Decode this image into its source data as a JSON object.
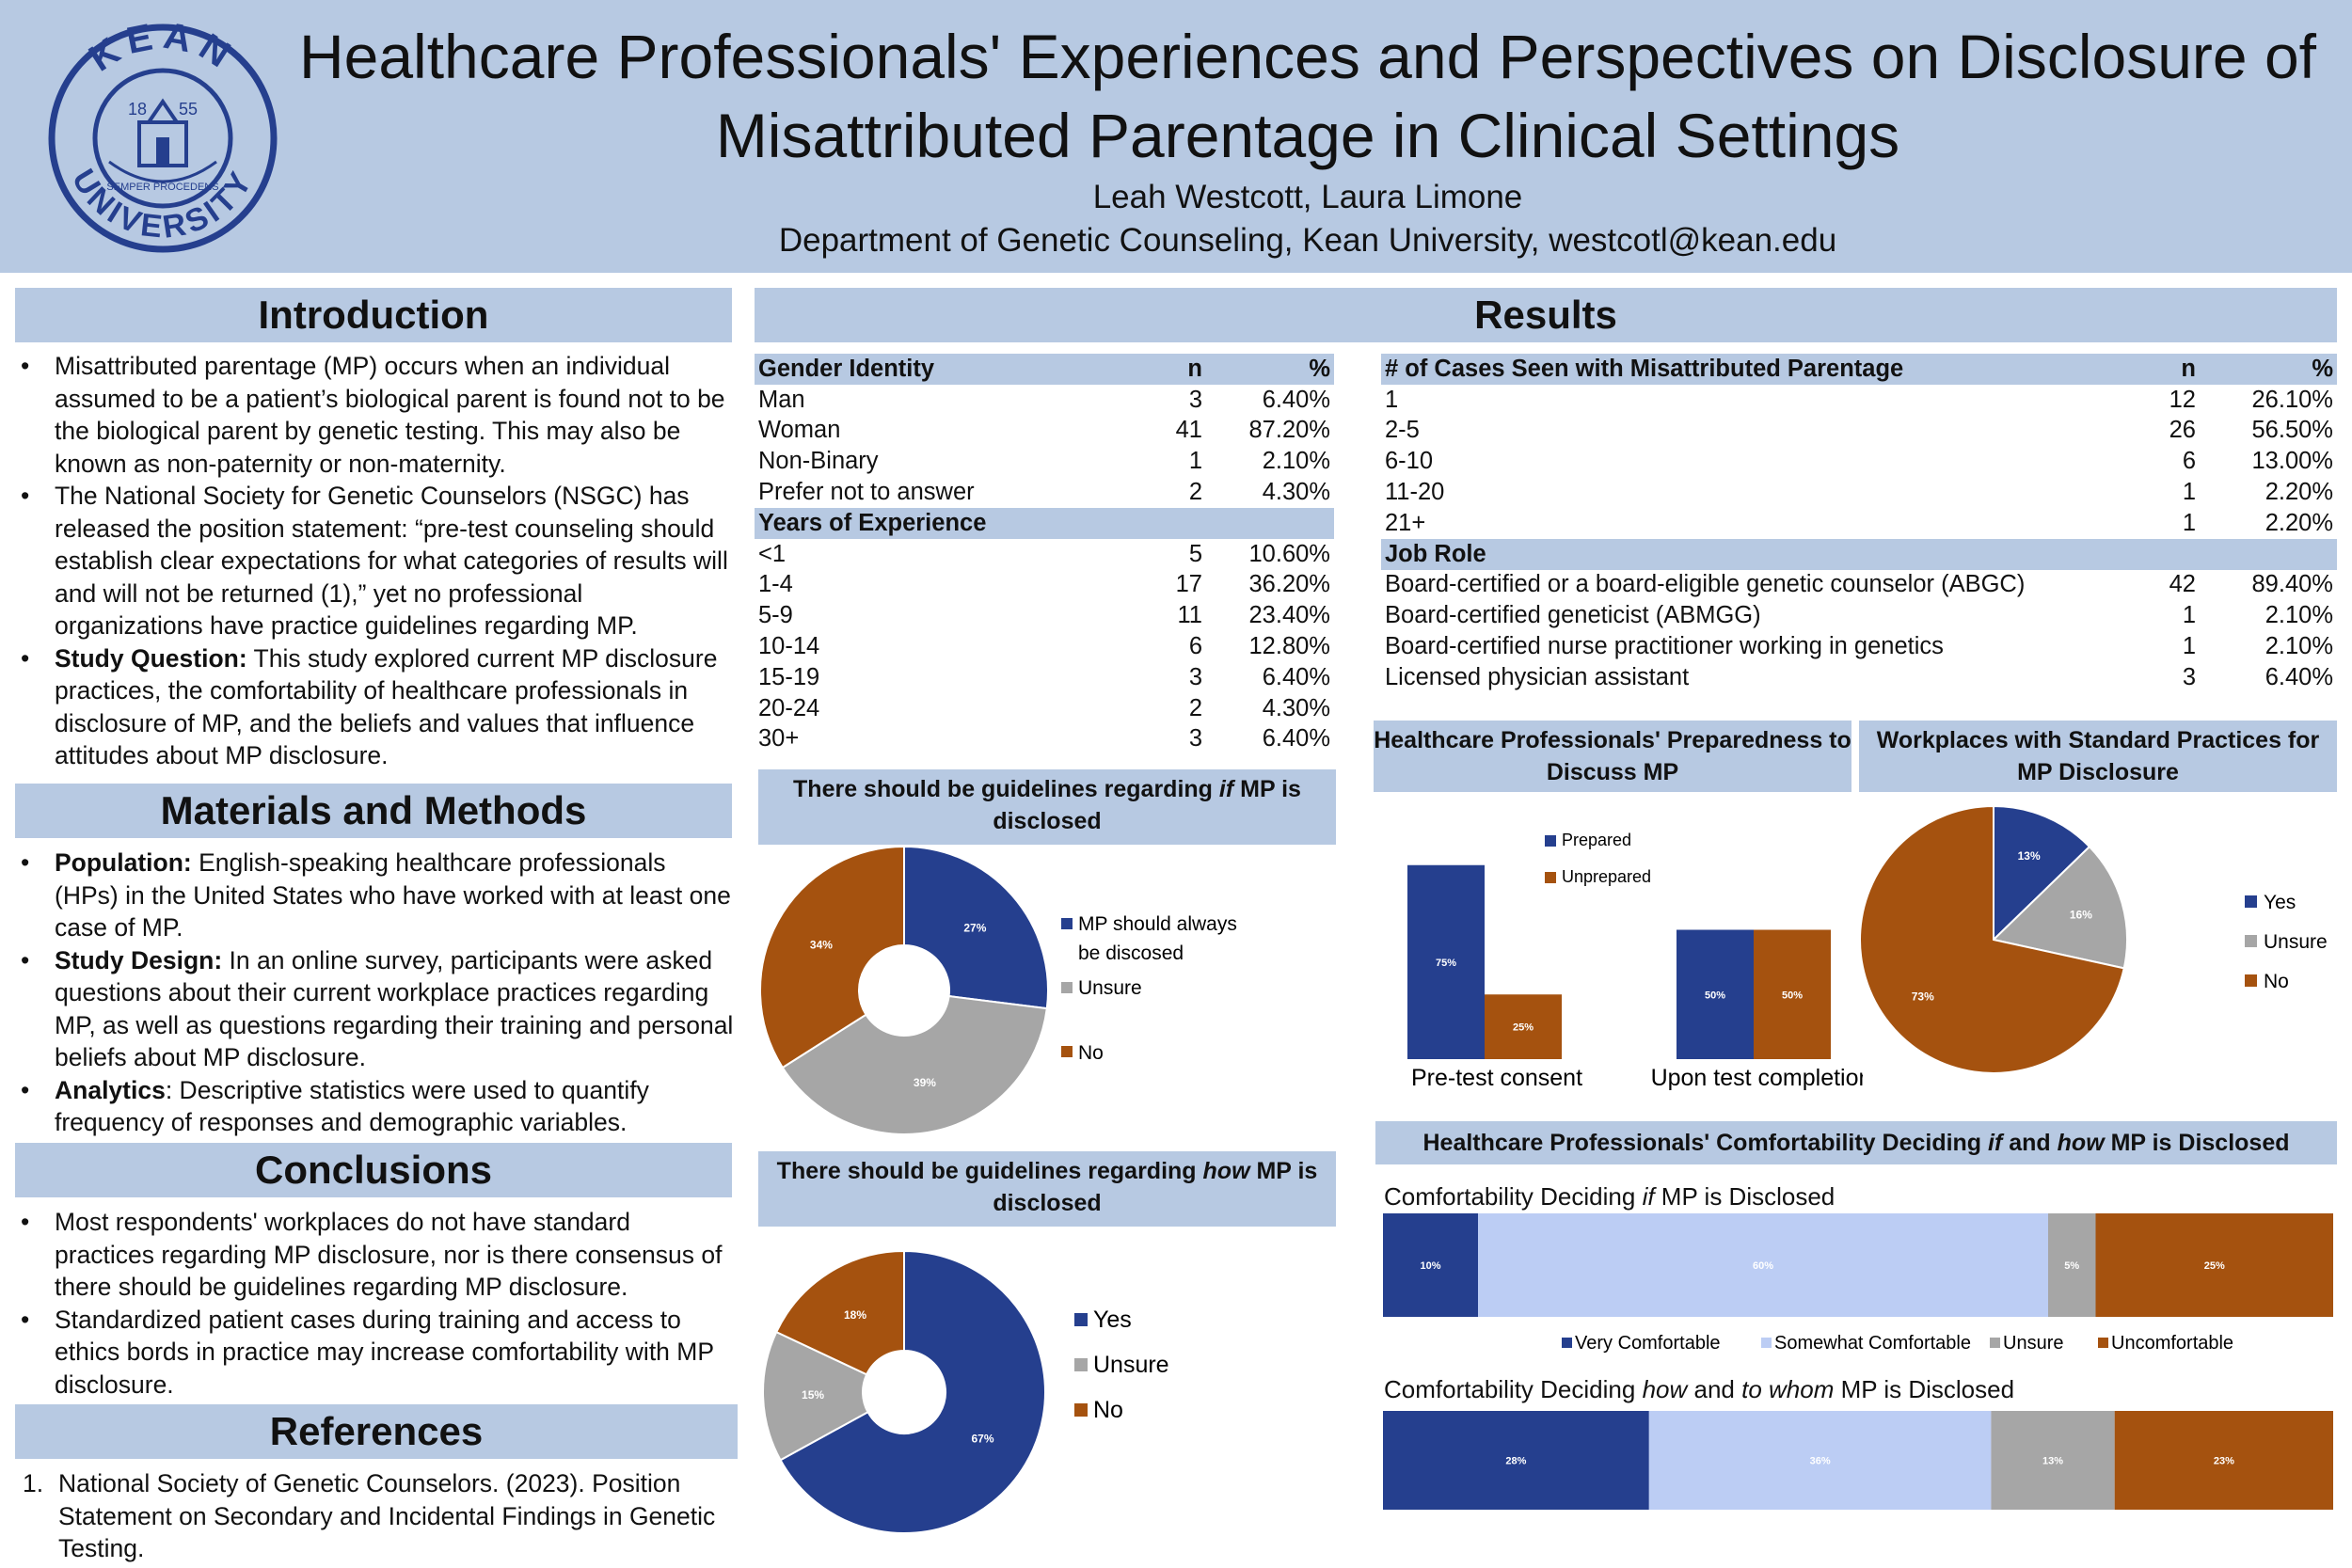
{
  "header": {
    "title_line1": "Healthcare Professionals' Experiences and Perspectives on Disclosure of",
    "title_line2": "Misattributed Parentage in Clinical Settings",
    "authors": "Leah Westcott, Laura Limone",
    "affiliation": "Department of Genetic Counseling, Kean University, westcotl@kean.edu",
    "logo": {
      "top_text": "KEAN",
      "bottom_text": "UNIVERSITY",
      "year_left": "18",
      "year_right": "55",
      "motto": "SEMPER PROCEDENS"
    }
  },
  "introduction": {
    "heading": "Introduction",
    "bullets": [
      {
        "bold": "",
        "text": "Misattributed parentage (MP) occurs when an individual assumed to be a patient’s biological parent is found not to be the biological parent by genetic testing. This may also be known as non-paternity or non-maternity."
      },
      {
        "bold": "",
        "text": "The National Society for Genetic Counselors (NSGC) has released the position statement: “pre-test counseling should establish clear expectations for what categories of results will and will not be returned (1),” yet no professional organizations have practice guidelines regarding MP."
      },
      {
        "bold": "Study Question:",
        "text": " This study explored current MP disclosure practices, the comfortability of healthcare professionals in disclosure of MP, and the beliefs and values that influence attitudes about MP disclosure."
      }
    ]
  },
  "methods": {
    "heading": "Materials and Methods",
    "bullets": [
      {
        "bold": "Population:",
        "text": " English-speaking healthcare professionals (HPs) in the United States who have worked with at least one case of MP."
      },
      {
        "bold": "Study Design:",
        "text": " In an online survey, participants were asked questions about their current workplace practices regarding MP, as well as questions regarding their training and personal beliefs  about MP disclosure."
      },
      {
        "bold": "Analytics",
        "text": ": Descriptive statistics were used to quantify frequency of responses and demographic variables."
      }
    ]
  },
  "conclusions": {
    "heading": "Conclusions",
    "bullets": [
      {
        "bold": "",
        "text": "Most respondents' workplaces do not have standard practices regarding MP disclosure, nor is there consensus of there should be guidelines regarding MP disclosure."
      },
      {
        "bold": "",
        "text": "Standardized patient cases during training and access to ethics bords in practice may increase comfortability with MP disclosure."
      }
    ]
  },
  "references": {
    "heading": "References",
    "items": [
      "National Society of Genetic Counselors. (2023). Position Statement on Secondary and Incidental Findings in Genetic Testing."
    ]
  },
  "results": {
    "heading": "Results",
    "table_left": {
      "sections": [
        {
          "title": "Gender Identity",
          "n_label": "n",
          "pct_label": "%",
          "rows": [
            [
              "Man",
              "3",
              "6.40%"
            ],
            [
              "Woman",
              "41",
              "87.20%"
            ],
            [
              "Non-Binary",
              "1",
              "2.10%"
            ],
            [
              "Prefer not to answer",
              "2",
              "4.30%"
            ]
          ]
        },
        {
          "title": "Years of Experience",
          "n_label": "",
          "pct_label": "",
          "rows": [
            [
              "<1",
              "5",
              "10.60%"
            ],
            [
              "1-4",
              "17",
              "36.20%"
            ],
            [
              "5-9",
              "11",
              "23.40%"
            ],
            [
              "10-14",
              "6",
              "12.80%"
            ],
            [
              "15-19",
              "3",
              "6.40%"
            ],
            [
              "20-24",
              "2",
              "4.30%"
            ],
            [
              "30+",
              "3",
              "6.40%"
            ]
          ]
        }
      ]
    },
    "table_right": {
      "sections": [
        {
          "title": "# of Cases Seen with Misattributed Parentage",
          "n_label": "n",
          "pct_label": "%",
          "rows": [
            [
              "1",
              "12",
              "26.10%"
            ],
            [
              "2-5",
              "26",
              "56.50%"
            ],
            [
              "6-10",
              "6",
              "13.00%"
            ],
            [
              "11-20",
              "1",
              "2.20%"
            ],
            [
              "21+",
              "1",
              "2.20%"
            ]
          ]
        },
        {
          "title": "Job Role",
          "n_label": "",
          "pct_label": "",
          "rows": [
            [
              "Board-certified or a board-eligible genetic counselor (ABGC)",
              "42",
              "89.40%"
            ],
            [
              "Board-certified geneticist (ABMGG)",
              "1",
              "2.10%"
            ],
            [
              "Board-certified nurse practitioner working in genetics",
              "1",
              "2.10%"
            ],
            [
              "Licensed physician assistant",
              "3",
              "6.40%"
            ]
          ]
        }
      ]
    }
  },
  "colors": {
    "blue": "#253f8e",
    "orange": "#a5520f",
    "gray": "#a6a6a6",
    "light_blue": "#bccdf4",
    "header_bg": "#b7c9e2"
  },
  "chart_data": [
    {
      "id": "if_guidelines",
      "type": "pie",
      "title_pre": "There should be guidelines regarding ",
      "title_em": "if",
      "title_post": " MP is disclosed",
      "categories": [
        "MP should always be discosed",
        "Unsure",
        "No"
      ],
      "values": [
        27,
        39,
        34
      ],
      "value_labels": [
        "27%",
        "39%",
        "34%"
      ],
      "legend_line1": "MP should always",
      "legend_line2": "be discosed"
    },
    {
      "id": "how_guidelines",
      "type": "pie",
      "title_pre": "There should be guidelines regarding ",
      "title_em": "how",
      "title_post": " MP is disclosed",
      "categories": [
        "Yes",
        "Unsure",
        "No"
      ],
      "values": [
        67,
        15,
        18
      ],
      "value_labels": [
        "67%",
        "15%",
        "18%"
      ]
    },
    {
      "id": "preparedness",
      "type": "bar",
      "title": "Healthcare Professionals' Preparedness to Discuss MP",
      "categories": [
        "Pre-test consent",
        "Upon test completion"
      ],
      "series": [
        {
          "name": "Prepared",
          "values": [
            75,
            50
          ],
          "labels": [
            "75%",
            "50%"
          ]
        },
        {
          "name": "Unprepared",
          "values": [
            25,
            50
          ],
          "labels": [
            "25%",
            "50%"
          ]
        }
      ],
      "ylim": [
        0,
        100
      ]
    },
    {
      "id": "workplaces",
      "type": "pie",
      "title": "Workplaces with Standard Practices for MP Disclosure",
      "categories": [
        "Yes",
        "Unsure",
        "No"
      ],
      "values": [
        13,
        16,
        73
      ],
      "value_labels": [
        "13%",
        "16%",
        "73%"
      ]
    },
    {
      "id": "comfort_if",
      "type": "bar",
      "stacked": true,
      "title_pre": "Comfortability Deciding ",
      "title_em": "if",
      "title_post": " MP is Disclosed",
      "categories": [
        "Very Comfortable",
        "Somewhat Comfortable",
        "Unsure",
        "Uncomfortable"
      ],
      "values": [
        10,
        60,
        5,
        25
      ],
      "value_labels": [
        "10%",
        "60%",
        "5%",
        "25%"
      ]
    },
    {
      "id": "comfort_how",
      "type": "bar",
      "stacked": true,
      "title_pre": "Comfortability Deciding ",
      "title_em": "how",
      "title_mid": " and ",
      "title_em2": "to whom",
      "title_post": " MP is Disclosed",
      "categories": [
        "Very Comfortable",
        "Somewhat Comfortable",
        "Unsure",
        "Uncomfortable"
      ],
      "values": [
        28,
        36,
        13,
        23
      ],
      "value_labels": [
        "28%",
        "36%",
        "13%",
        "23%"
      ]
    }
  ],
  "comfort_section": {
    "title_pre": "Healthcare Professionals' Comfortability Deciding ",
    "title_em": "if",
    "title_mid": " and ",
    "title_em2": "how",
    "title_post": " MP is Disclosed"
  }
}
